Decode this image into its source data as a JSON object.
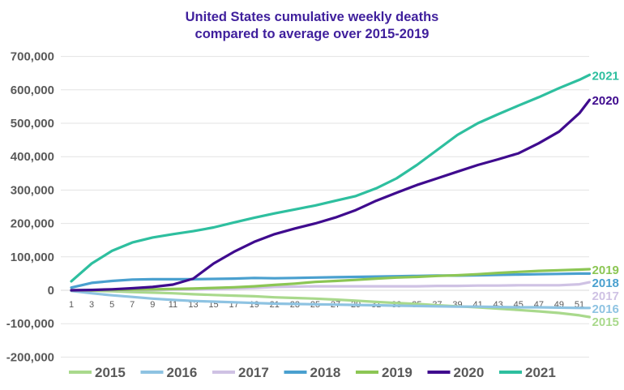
{
  "chart_data": {
    "type": "line",
    "title": "United States cumulative weekly deaths\ncompared to average over 2015-2019",
    "title_lines": [
      "United States cumulative weekly deaths",
      "compared to average over 2015-2019"
    ],
    "xlabel": "",
    "ylabel": "",
    "ylim": [
      -200000,
      700000
    ],
    "yticks": [
      "700,000",
      "600,000",
      "500,000",
      "400,000",
      "300,000",
      "200,000",
      "100,000",
      "0",
      "-100,000",
      "-200,000"
    ],
    "ytick_values": [
      700000,
      600000,
      500000,
      400000,
      300000,
      200000,
      100000,
      0,
      -100000,
      -200000
    ],
    "xticks": [
      "1",
      "3",
      "5",
      "7",
      "9",
      "11",
      "13",
      "15",
      "17",
      "19",
      "21",
      "23",
      "25",
      "27",
      "29",
      "31",
      "33",
      "35",
      "37",
      "39",
      "41",
      "43",
      "45",
      "47",
      "49",
      "51"
    ],
    "grid": true,
    "legend_position": "bottom",
    "end_labels": true,
    "x": [
      1,
      3,
      5,
      7,
      9,
      11,
      13,
      15,
      17,
      19,
      21,
      23,
      25,
      27,
      29,
      31,
      33,
      35,
      37,
      39,
      41,
      43,
      45,
      47,
      49,
      51,
      52
    ],
    "series": [
      {
        "name": "2015",
        "color": "#a9d98c",
        "values": [
          0,
          -1000,
          -3000,
          -5000,
          -7000,
          -9000,
          -12000,
          -14000,
          -16000,
          -18000,
          -21000,
          -23000,
          -25000,
          -28000,
          -31000,
          -35000,
          -38000,
          -41000,
          -45000,
          -48000,
          -51000,
          -55000,
          -59000,
          -63000,
          -68000,
          -75000,
          -80000
        ]
      },
      {
        "name": "2016",
        "color": "#8ec3e2",
        "values": [
          -2000,
          -9000,
          -15000,
          -20000,
          -25000,
          -29000,
          -32000,
          -34000,
          -36000,
          -38000,
          -40000,
          -41000,
          -42000,
          -43000,
          -44000,
          -45000,
          -46000,
          -47000,
          -48000,
          -49000,
          -49000,
          -50000,
          -51000,
          -51000,
          -52000,
          -53000,
          -53000
        ]
      },
      {
        "name": "2017",
        "color": "#cfc2e4",
        "values": [
          0,
          0,
          0,
          1000,
          1000,
          2000,
          2000,
          3000,
          5000,
          7000,
          10000,
          11000,
          12000,
          12000,
          12000,
          12000,
          12000,
          12000,
          13000,
          13000,
          14000,
          14000,
          15000,
          15000,
          15000,
          18000,
          24000
        ]
      },
      {
        "name": "2018",
        "color": "#4aa0cf",
        "values": [
          8000,
          22000,
          28000,
          32000,
          33000,
          33000,
          33000,
          34000,
          35000,
          37000,
          36000,
          37000,
          38000,
          39000,
          40000,
          41000,
          42000,
          43000,
          44000,
          44000,
          45000,
          46000,
          47000,
          48000,
          49000,
          50000,
          50000
        ]
      },
      {
        "name": "2019",
        "color": "#8cc654",
        "values": [
          0,
          0,
          1000,
          2000,
          3000,
          4000,
          5000,
          7000,
          9000,
          12000,
          16000,
          20000,
          25000,
          28000,
          31000,
          35000,
          38000,
          40000,
          43000,
          45000,
          48000,
          52000,
          55000,
          58000,
          60000,
          62000,
          63000
        ]
      },
      {
        "name": "2020",
        "color": "#3f0b8e",
        "values": [
          0,
          1000,
          3000,
          6000,
          10000,
          17000,
          35000,
          80000,
          115000,
          145000,
          168000,
          185000,
          200000,
          218000,
          240000,
          268000,
          292000,
          315000,
          335000,
          355000,
          375000,
          392000,
          410000,
          440000,
          475000,
          530000,
          570000
        ]
      },
      {
        "name": "2021",
        "color": "#2ebf9f",
        "values": [
          27000,
          80000,
          118000,
          143000,
          158000,
          168000,
          177000,
          188000,
          203000,
          217000,
          230000,
          242000,
          254000,
          268000,
          282000,
          305000,
          335000,
          375000,
          420000,
          465000,
          500000,
          527000,
          553000,
          578000,
          605000,
          630000,
          645000
        ]
      }
    ]
  }
}
